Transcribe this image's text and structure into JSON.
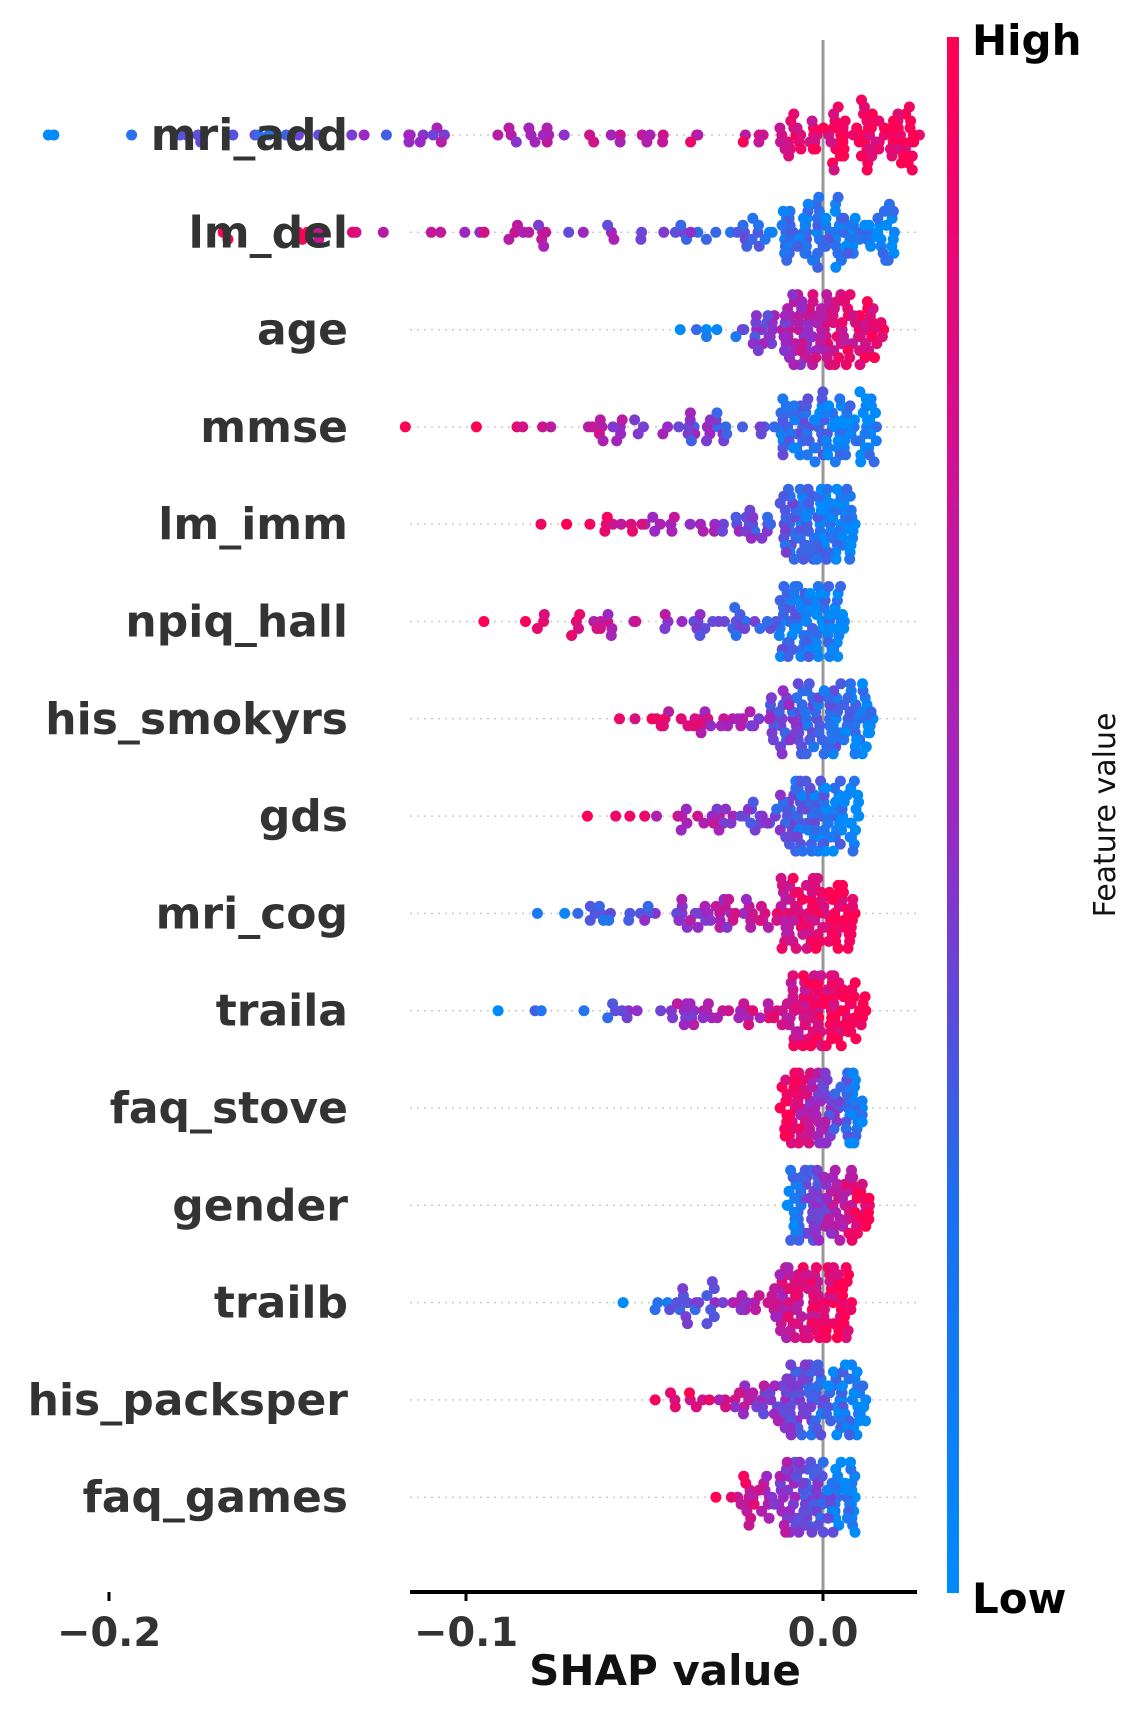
{
  "chart_data": {
    "type": "scatter",
    "subtype": "shap-beeswarm",
    "xlabel": "SHAP value",
    "xticks": [
      "−0.2",
      "−0.1",
      "0.0"
    ],
    "xtick_values": [
      -0.2,
      -0.1,
      0.0
    ],
    "xlim": [
      -0.231,
      0.26
    ],
    "colorbar": {
      "title": "Feature value",
      "high_label": "High",
      "low_label": "Low",
      "low_color": "#008bfb",
      "high_color": "#ff0052"
    },
    "features": [
      {
        "name": "mri_add",
        "min": -0.217,
        "max": 0.027,
        "low_side": "left"
      },
      {
        "name": "lm_del",
        "min": -0.168,
        "max": 0.02,
        "low_side": "right"
      },
      {
        "name": "age",
        "min": -0.04,
        "max": 0.017,
        "low_side": "left"
      },
      {
        "name": "mmse",
        "min": -0.117,
        "max": 0.015,
        "low_side": "right"
      },
      {
        "name": "lm_imm",
        "min": -0.079,
        "max": 0.009,
        "low_side": "right"
      },
      {
        "name": "npiq_hall",
        "min": -0.095,
        "max": 0.006,
        "low_side": "right"
      },
      {
        "name": "his_smokyrs",
        "min": -0.057,
        "max": 0.014,
        "low_side": "right"
      },
      {
        "name": "gds",
        "min": -0.066,
        "max": 0.01,
        "low_side": "right"
      },
      {
        "name": "mri_cog",
        "min": -0.08,
        "max": 0.009,
        "low_side": "left"
      },
      {
        "name": "traila",
        "min": -0.091,
        "max": 0.012,
        "low_side": "left"
      },
      {
        "name": "faq_stove",
        "min": -0.012,
        "max": 0.011,
        "low_side": "right"
      },
      {
        "name": "gender",
        "min": -0.01,
        "max": 0.013,
        "low_side": "left"
      },
      {
        "name": "trailb",
        "min": -0.056,
        "max": 0.008,
        "low_side": "left"
      },
      {
        "name": "his_packsper",
        "min": -0.047,
        "max": 0.012,
        "low_side": "right"
      },
      {
        "name": "faq_games",
        "min": -0.03,
        "max": 0.009,
        "low_side": "right"
      }
    ]
  }
}
